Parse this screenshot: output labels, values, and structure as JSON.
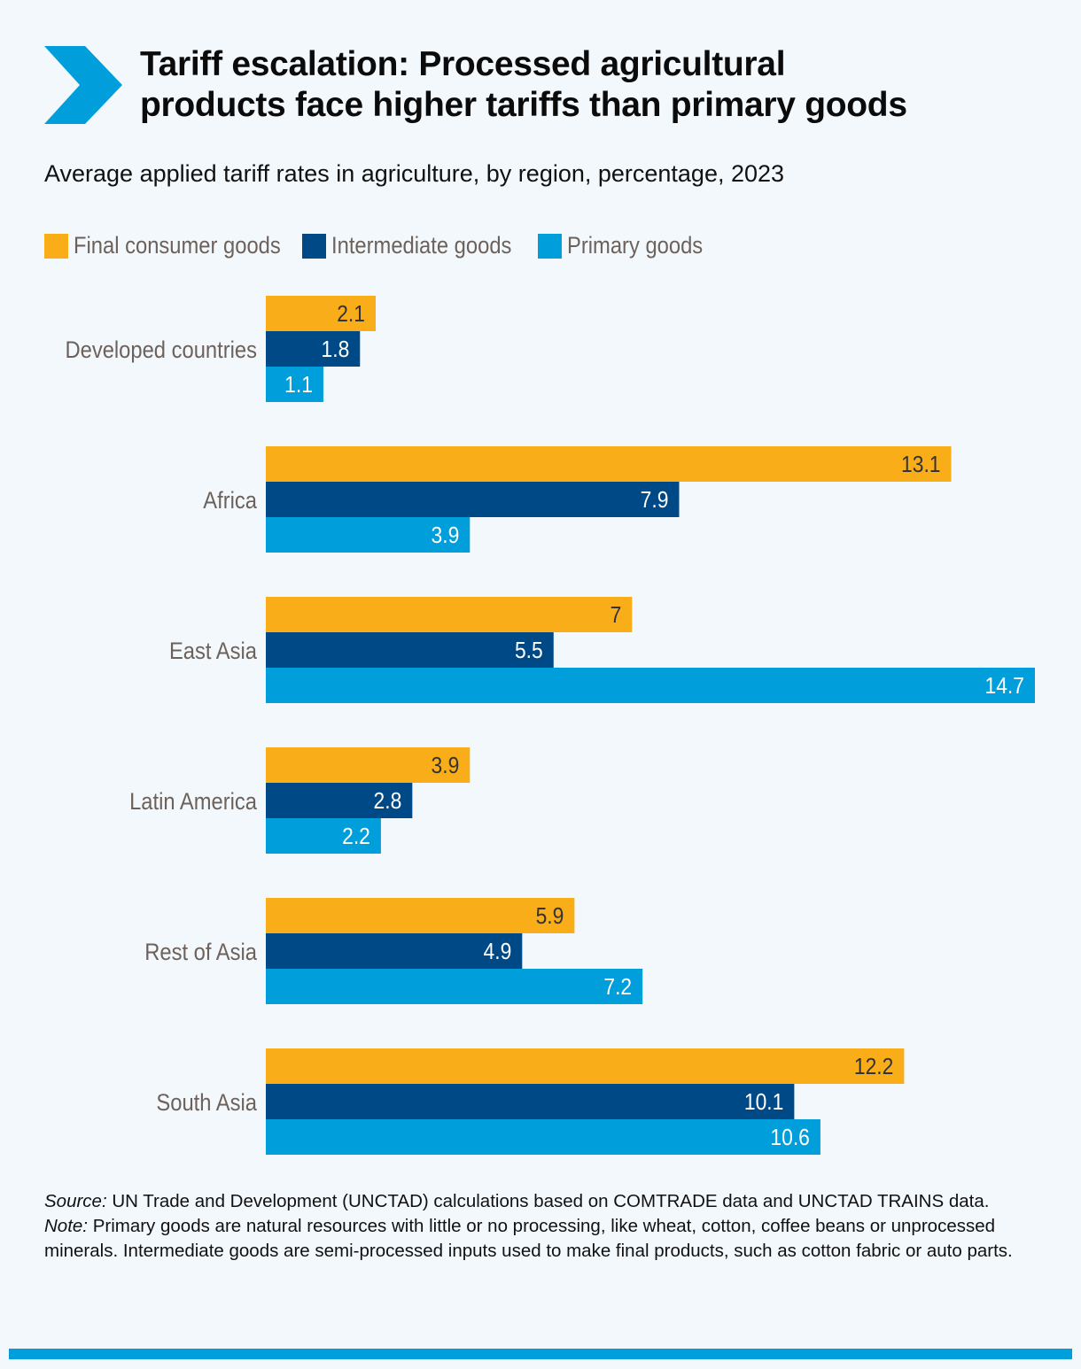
{
  "header": {
    "icon": "chevron-right-icon",
    "title_lines": [
      "Tariff escalation: Processed agricultural",
      "products face higher tariffs than primary goods"
    ],
    "subtitle": "Average applied tariff rates in agriculture, by region, percentage, 2023"
  },
  "colors": {
    "final_consumer": "#f9ae19",
    "intermediate": "#004987",
    "primary": "#009edb",
    "accent": "#009edb",
    "label_text": "#6d625b"
  },
  "chart_data": {
    "type": "bar",
    "orientation": "horizontal",
    "title": "Average applied tariff rates in agriculture, by region, percentage, 2023",
    "xlabel": "",
    "ylabel": "",
    "xlim": [
      0,
      14.7
    ],
    "grid": false,
    "legend_position": "top-left",
    "categories": [
      "Developed countries",
      "Africa",
      "East Asia",
      "Latin America",
      "Rest of Asia",
      "South Asia"
    ],
    "series": [
      {
        "name": "Final consumer goods",
        "color": "#f9ae19",
        "label_color": "#333333",
        "values": [
          2.1,
          13.1,
          7,
          3.9,
          5.9,
          12.2
        ]
      },
      {
        "name": "Intermediate goods",
        "color": "#004987",
        "label_color": "#ffffff",
        "values": [
          1.8,
          7.9,
          5.5,
          2.8,
          4.9,
          10.1
        ]
      },
      {
        "name": "Primary goods",
        "color": "#009edb",
        "label_color": "#ffffff",
        "values": [
          1.1,
          3.9,
          14.7,
          2.2,
          7.2,
          10.6
        ]
      }
    ]
  },
  "footnote": {
    "source_label": "Source:",
    "source_text": " UN Trade and Development (UNCTAD) calculations based on COMTRADE data and UNCTAD TRAINS data.",
    "note_label": "Note:",
    "note_text": " Primary goods are natural resources with little or no processing, like wheat, cotton, coffee beans or unprocessed minerals. Intermediate goods are semi-processed inputs used to make final products, such as cotton fabric or auto parts."
  }
}
